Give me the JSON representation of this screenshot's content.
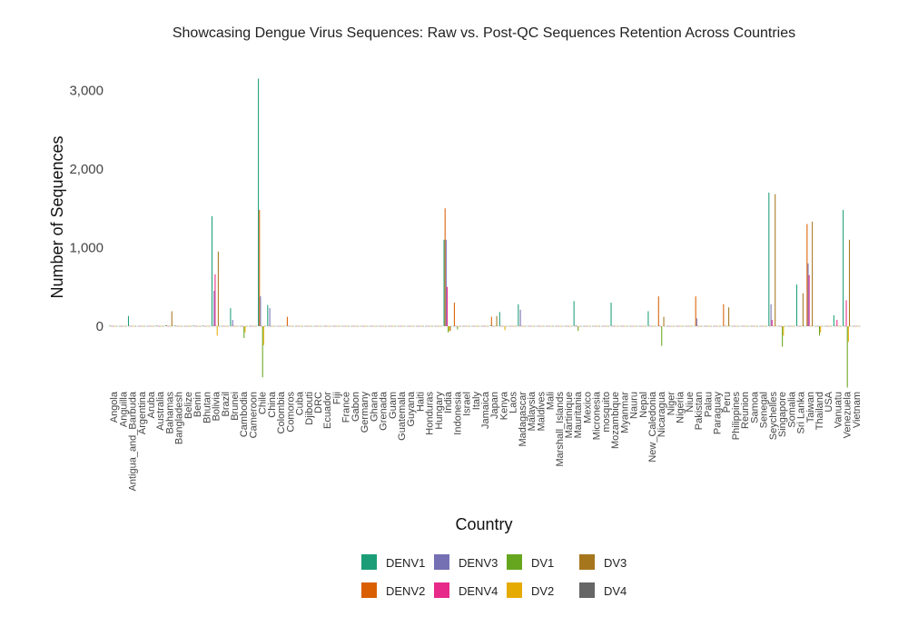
{
  "chart_data": {
    "type": "bar",
    "title": "Showcasing Dengue Virus Sequences: Raw vs. Post-QC Sequences Retention Across Countries",
    "xlabel": "Country",
    "ylabel": "Number of Sequences",
    "ylim": [
      -800,
      3300
    ],
    "yticks": [
      0,
      1000,
      2000,
      3000
    ],
    "ytick_labels": [
      "0",
      "1,000",
      "2,000",
      "3,000"
    ],
    "grid": false,
    "legend_position": "bottom",
    "colors": {
      "DENV1": "#1b9e77",
      "DENV2": "#d95f02",
      "DENV3": "#7570b3",
      "DENV4": "#e7298a",
      "DV1": "#66a61e",
      "DV2": "#e6ab02",
      "DV3": "#a6761d",
      "DV4": "#666666"
    },
    "legend_order": [
      "DENV1",
      "DENV2",
      "DENV3",
      "DENV4",
      "DV1",
      "DV2",
      "DV3",
      "DV4"
    ],
    "categories": [
      "Angola",
      "Anguilla",
      "Antigua_and_Barbuda",
      "Argentina",
      "Aruba",
      "Australia",
      "Bahamas",
      "Bangladesh",
      "Belize",
      "Benin",
      "Bhutan",
      "Bolivia",
      "Brazil",
      "Brunei",
      "Cambodia",
      "Cameroon",
      "Chile",
      "China",
      "Colombia",
      "Comoros",
      "Cuba",
      "Djibouti",
      "DRC",
      "Ecuador",
      "Fiji",
      "France",
      "Gabon",
      "Germany",
      "Ghana",
      "Grenada",
      "Guam",
      "Guatemala",
      "Guyana",
      "Haiti",
      "Honduras",
      "Hungary",
      "India",
      "Indonesia",
      "Israel",
      "Italy",
      "Jamaica",
      "Japan",
      "Kenya",
      "Laos",
      "Madagascar",
      "Malaysia",
      "Maldives",
      "Mali",
      "Marshall_Islands",
      "Martinique",
      "Mauritania",
      "Mexico",
      "Micronesia",
      "mosquito",
      "Mozambique",
      "Myanmar",
      "Nauru",
      "Nepal",
      "New_Caledonia",
      "Nicaragua",
      "Niger",
      "Nigeria",
      "Niue",
      "Pakistan",
      "Palau",
      "Paraguay",
      "Peru",
      "Philippines",
      "Reunion",
      "Samoa",
      "Senegal",
      "Seychelles",
      "Singapore",
      "Somalia",
      "Sri Lanka",
      "Taiwan",
      "Thailand",
      "USA",
      "Vanuatu",
      "Venezuela",
      "Vietnam"
    ],
    "tick_labels": [
      "Angola",
      "Anguilla",
      "Antigua_and_Barbuda",
      "Argentina",
      "Aruba",
      "Australia",
      "Bahamas",
      "Bangladesh",
      "Belize",
      "Benin",
      "Bhutan",
      "Bolivia",
      "Brazil",
      "Brunei",
      "Cambodia",
      "Cameroon",
      "Chile",
      "China",
      "Colombia",
      "Comoros",
      "Cuba",
      "Djibouti",
      "DRC",
      "Ecuador",
      "Fiji",
      "France",
      "Gabon",
      "Germany",
      "Ghana",
      "Grenada",
      "Guam",
      "Guatemala",
      "Guyana",
      "Haiti",
      "Honduras",
      "Hungary",
      "India",
      "Indonesia",
      "Israel",
      "Italy",
      "Jamaica",
      "Japan",
      "Kenya",
      "Laos",
      "Madagascar",
      "Malaysia",
      "Maldives",
      "Mali",
      "Marshall_Islands",
      "Martinique",
      "Mauritania",
      "Mexico",
      "Micronesia",
      "mosquito",
      "Mozambique",
      "Myanmar",
      "Nauru",
      "Nepal",
      "New_Caledonia",
      "Nicaragua",
      "Niger",
      "Nigeria",
      "Niue",
      "Pakistan",
      "Palau",
      "Paraguay",
      "Peru",
      "Philippines",
      "Reunion",
      "Samoa",
      "Senegal",
      "Seychelles",
      "Singapore",
      "Somalia",
      "Sri Lanka",
      "Taiwan",
      "Thailand",
      "USA",
      "Vanuatu",
      "Venezuela",
      "Vietnam"
    ],
    "series": [
      {
        "name": "DENV1",
        "values": [
          10,
          0,
          130,
          0,
          0,
          10,
          10,
          10,
          0,
          10,
          10,
          1400,
          0,
          230,
          0,
          0,
          3150,
          270,
          0,
          0,
          0,
          0,
          0,
          0,
          0,
          0,
          0,
          0,
          0,
          0,
          0,
          0,
          0,
          0,
          0,
          0,
          1100,
          0,
          0,
          0,
          0,
          10,
          180,
          0,
          280,
          0,
          0,
          0,
          0,
          0,
          320,
          0,
          0,
          0,
          300,
          0,
          0,
          0,
          190,
          0,
          0,
          0,
          0,
          0,
          0,
          0,
          0,
          0,
          0,
          0,
          0,
          1700,
          0,
          0,
          530,
          0,
          0,
          0,
          140,
          1480,
          0
        ]
      },
      {
        "name": "DENV2",
        "values": [
          0,
          0,
          0,
          0,
          0,
          0,
          10,
          0,
          0,
          0,
          0,
          0,
          0,
          0,
          0,
          0,
          1480,
          0,
          0,
          120,
          0,
          0,
          0,
          0,
          0,
          0,
          0,
          0,
          0,
          0,
          0,
          0,
          0,
          0,
          0,
          0,
          1500,
          300,
          0,
          0,
          0,
          120,
          0,
          0,
          0,
          0,
          0,
          0,
          0,
          0,
          0,
          0,
          0,
          0,
          0,
          0,
          0,
          0,
          0,
          380,
          0,
          0,
          0,
          380,
          0,
          0,
          280,
          0,
          0,
          0,
          0,
          0,
          0,
          0,
          0,
          1300,
          0,
          0,
          0,
          0,
          0
        ]
      },
      {
        "name": "DENV3",
        "values": [
          0,
          0,
          0,
          0,
          0,
          0,
          0,
          0,
          0,
          0,
          0,
          450,
          0,
          80,
          0,
          0,
          380,
          230,
          0,
          0,
          0,
          0,
          0,
          0,
          0,
          0,
          0,
          0,
          0,
          0,
          0,
          0,
          0,
          0,
          0,
          0,
          1100,
          0,
          0,
          0,
          0,
          0,
          0,
          0,
          210,
          0,
          0,
          0,
          0,
          0,
          10,
          0,
          0,
          0,
          0,
          0,
          0,
          0,
          0,
          0,
          0,
          0,
          0,
          100,
          0,
          0,
          0,
          0,
          0,
          0,
          0,
          280,
          0,
          0,
          0,
          800,
          0,
          0,
          0,
          0,
          0
        ]
      },
      {
        "name": "DENV4",
        "values": [
          0,
          0,
          0,
          0,
          0,
          0,
          0,
          0,
          0,
          0,
          0,
          660,
          0,
          0,
          0,
          0,
          0,
          0,
          0,
          0,
          0,
          0,
          0,
          0,
          0,
          0,
          0,
          0,
          0,
          0,
          0,
          0,
          0,
          0,
          0,
          0,
          500,
          0,
          0,
          0,
          0,
          0,
          0,
          0,
          0,
          0,
          0,
          0,
          0,
          0,
          0,
          0,
          0,
          0,
          0,
          0,
          0,
          0,
          0,
          0,
          0,
          0,
          0,
          0,
          0,
          0,
          0,
          0,
          0,
          0,
          0,
          80,
          0,
          0,
          0,
          650,
          0,
          0,
          80,
          330,
          0
        ]
      },
      {
        "name": "DV1",
        "values": [
          0,
          0,
          0,
          0,
          0,
          0,
          0,
          0,
          0,
          0,
          0,
          0,
          0,
          0,
          -150,
          0,
          -650,
          0,
          0,
          0,
          0,
          0,
          0,
          0,
          0,
          0,
          0,
          0,
          0,
          0,
          0,
          0,
          0,
          0,
          0,
          0,
          -80,
          -40,
          0,
          0,
          0,
          0,
          0,
          0,
          0,
          0,
          0,
          0,
          0,
          0,
          -60,
          0,
          0,
          0,
          0,
          0,
          0,
          0,
          0,
          -250,
          0,
          0,
          0,
          0,
          0,
          0,
          0,
          0,
          0,
          0,
          0,
          0,
          -260,
          0,
          0,
          0,
          -120,
          0,
          0,
          -780,
          0
        ]
      },
      {
        "name": "DV2",
        "values": [
          0,
          0,
          0,
          0,
          0,
          0,
          0,
          0,
          0,
          0,
          0,
          -120,
          0,
          0,
          -80,
          0,
          -240,
          0,
          0,
          0,
          0,
          0,
          0,
          0,
          0,
          0,
          0,
          0,
          0,
          0,
          0,
          0,
          0,
          0,
          0,
          0,
          -60,
          0,
          0,
          0,
          0,
          0,
          -50,
          0,
          0,
          0,
          0,
          0,
          0,
          0,
          0,
          0,
          0,
          0,
          0,
          0,
          0,
          0,
          0,
          0,
          0,
          0,
          0,
          0,
          0,
          0,
          0,
          0,
          0,
          0,
          0,
          0,
          -120,
          0,
          0,
          0,
          -80,
          0,
          0,
          -200,
          0
        ]
      },
      {
        "name": "DV3",
        "values": [
          0,
          0,
          0,
          0,
          0,
          0,
          190,
          0,
          0,
          0,
          0,
          950,
          0,
          0,
          0,
          0,
          0,
          0,
          0,
          0,
          0,
          0,
          0,
          0,
          0,
          0,
          0,
          0,
          0,
          0,
          0,
          0,
          0,
          0,
          0,
          0,
          -60,
          0,
          0,
          0,
          0,
          130,
          0,
          0,
          0,
          0,
          0,
          0,
          0,
          0,
          0,
          0,
          0,
          0,
          0,
          0,
          0,
          0,
          0,
          120,
          0,
          0,
          0,
          0,
          0,
          0,
          240,
          0,
          0,
          0,
          0,
          1680,
          0,
          0,
          420,
          1330,
          0,
          0,
          0,
          1100,
          0
        ]
      },
      {
        "name": "DV4",
        "values": [
          0,
          0,
          0,
          0,
          0,
          0,
          0,
          0,
          0,
          0,
          0,
          0,
          0,
          0,
          0,
          0,
          0,
          0,
          0,
          0,
          0,
          0,
          0,
          0,
          0,
          0,
          0,
          0,
          0,
          0,
          0,
          0,
          0,
          0,
          0,
          0,
          0,
          0,
          0,
          0,
          0,
          0,
          0,
          0,
          0,
          0,
          0,
          0,
          0,
          0,
          0,
          0,
          0,
          0,
          0,
          0,
          0,
          0,
          0,
          0,
          0,
          0,
          0,
          0,
          0,
          0,
          0,
          0,
          0,
          0,
          0,
          0,
          0,
          0,
          0,
          0,
          0,
          0,
          0,
          0,
          0
        ]
      }
    ]
  }
}
